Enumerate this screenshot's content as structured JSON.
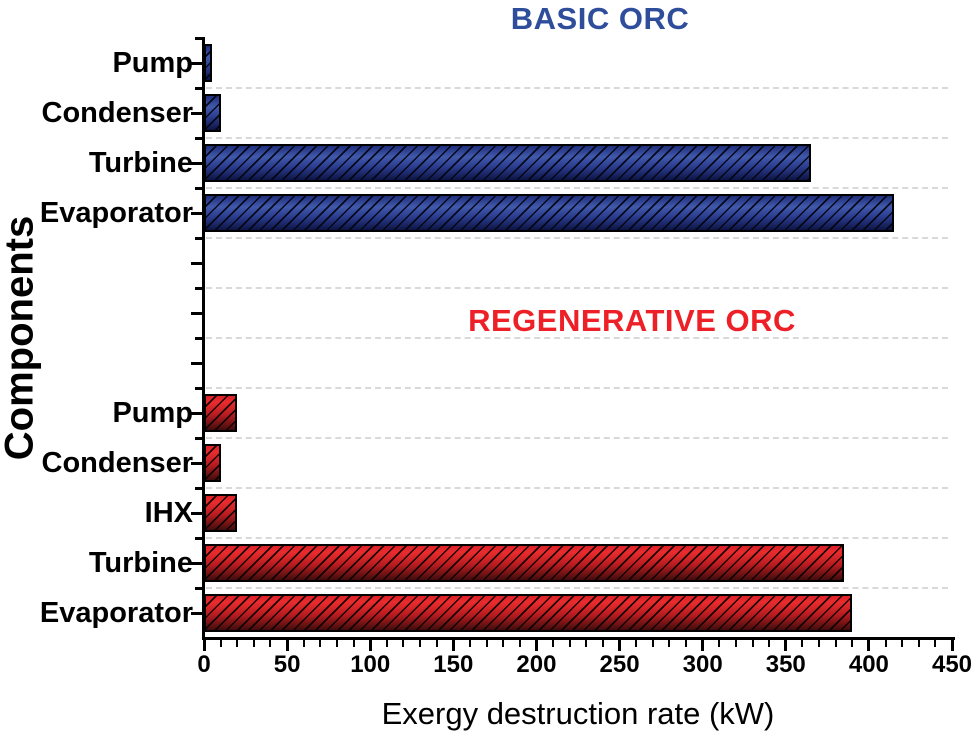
{
  "colors": {
    "basic_title_color": "#2e4d9b",
    "regen_title_color": "#ee2027",
    "blue_bar_top": "#202f7c",
    "blue_bar_light": "#4159ac",
    "blue_bar_mid": "#2a3b8d",
    "blue_bar_dark": "#0d1444",
    "red_bar_top": "#dd2026",
    "red_bar_bright": "#ea2c2e",
    "red_bar_mid": "#b81c20",
    "red_bar_dark": "#400c0c",
    "axis_color": "#000000",
    "grid_color": "#d9d9d9"
  },
  "chart_data": {
    "type": "bar",
    "orientation": "horizontal",
    "title": "",
    "xlabel": "Exergy destruction rate (kW)",
    "ylabel": "Components",
    "xlim": [
      0,
      450
    ],
    "x_major_tick_step": 50,
    "x_minor_tick_step": 10,
    "x_tick_labels": [
      "0",
      "50",
      "100",
      "150",
      "200",
      "250",
      "300",
      "350",
      "400",
      "450"
    ],
    "grid": "dashed horizontal lines at category boundaries",
    "legend_position": "inline group titles",
    "empty_rows_between_groups": 3,
    "groups": [
      {
        "name": "BASIC ORC",
        "bar_style": "blue",
        "categories": [
          "Pump",
          "Condenser",
          "Turbine",
          "Evaporator"
        ],
        "values": [
          5,
          10,
          365,
          415
        ]
      },
      {
        "name": "REGENERATIVE ORC",
        "bar_style": "red",
        "categories": [
          "Pump",
          "Condenser",
          "IHX",
          "Turbine",
          "Evaporator"
        ],
        "values": [
          20,
          10,
          20,
          385,
          390
        ]
      }
    ]
  }
}
